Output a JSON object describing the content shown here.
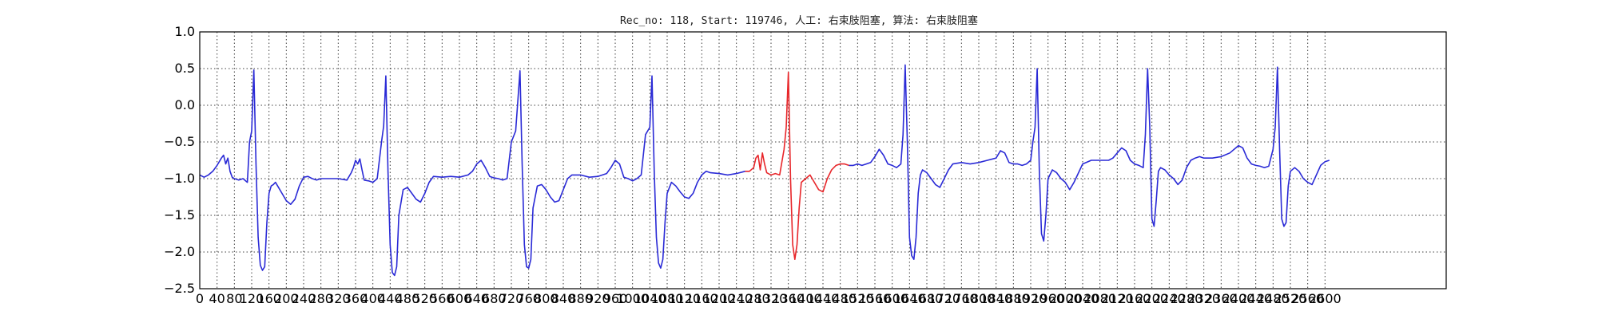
{
  "chart_data": {
    "type": "line",
    "title": "Rec_no: 118, Start: 119746, 人工: 右束肢阻塞, 算法: 右束肢阻塞",
    "xlabel": "",
    "ylabel": "",
    "xlim": [
      0,
      2880
    ],
    "ylim": [
      -2.5,
      1.0
    ],
    "grid": true,
    "yticks": [
      1.0,
      0.5,
      0.0,
      -0.5,
      -1.0,
      -1.5,
      -2.0,
      -2.5
    ],
    "ytick_labels": [
      "1.0",
      "0.5",
      "0.0",
      "−0.5",
      "−1.0",
      "−1.5",
      "−2.0",
      "−2.5"
    ],
    "xticks": [
      0,
      40,
      80,
      120,
      160,
      200,
      240,
      280,
      320,
      360,
      400,
      440,
      480,
      520,
      560,
      600,
      640,
      680,
      720,
      760,
      800,
      840,
      880,
      920,
      960,
      1000,
      1040,
      1080,
      1120,
      1160,
      1200,
      1240,
      1280,
      1320,
      1360,
      1400,
      1440,
      1480,
      1520,
      1560,
      1600,
      1640,
      1680,
      1720,
      1760,
      1800,
      1840,
      1880,
      1920,
      1960,
      2000,
      2040,
      2080,
      2120,
      2160,
      2200,
      2240,
      2280,
      2320,
      2360,
      2400,
      2440,
      2480,
      2520,
      2560,
      2600
    ],
    "highlight_color": "#e8262a",
    "base_color": "#2a2ad6",
    "series": [
      {
        "color": "#2a2ad6",
        "x": [
          0,
          10,
          20,
          30,
          40,
          50,
          55,
          60,
          65,
          70,
          75,
          80,
          90,
          100,
          110,
          115,
          120,
          125,
          130,
          135,
          140,
          145,
          150,
          155,
          160,
          165,
          170,
          175,
          180,
          190,
          200,
          210,
          220,
          230,
          240,
          250,
          260,
          270,
          280,
          300,
          320,
          340,
          350,
          355,
          360,
          365,
          370,
          375,
          380,
          390,
          400,
          410,
          420,
          425,
          430,
          435,
          440,
          445,
          450,
          455,
          460,
          470,
          480,
          490,
          500,
          510,
          520,
          530,
          540,
          560,
          580,
          600,
          620,
          630,
          640,
          650,
          660,
          670,
          680,
          690,
          700,
          710,
          720,
          730,
          740,
          745,
          750,
          755,
          760,
          765,
          770,
          780,
          790,
          800,
          810,
          820,
          830,
          840,
          850,
          860,
          880,
          900,
          920,
          940,
          950,
          960,
          970,
          980,
          990,
          1000,
          1010,
          1020,
          1030,
          1040,
          1045,
          1050,
          1055,
          1060,
          1065,
          1070,
          1075,
          1080,
          1090,
          1100,
          1110,
          1120,
          1130,
          1140,
          1150,
          1160,
          1170,
          1180,
          1200,
          1220,
          1240,
          1260
        ],
        "y": [
          -0.95,
          -0.98,
          -0.95,
          -0.9,
          -0.82,
          -0.72,
          -0.68,
          -0.8,
          -0.72,
          -0.9,
          -0.98,
          -1.0,
          -1.02,
          -1.0,
          -1.05,
          -0.5,
          -0.35,
          0.48,
          -0.8,
          -1.8,
          -2.18,
          -2.25,
          -2.2,
          -1.6,
          -1.2,
          -1.1,
          -1.08,
          -1.05,
          -1.1,
          -1.2,
          -1.3,
          -1.35,
          -1.28,
          -1.1,
          -0.98,
          -0.97,
          -1.0,
          -1.02,
          -1.0,
          -1.0,
          -1.0,
          -1.02,
          -0.92,
          -0.85,
          -0.75,
          -0.8,
          -0.73,
          -0.88,
          -1.02,
          -1.03,
          -1.05,
          -1.0,
          -0.5,
          -0.28,
          0.4,
          -0.9,
          -1.9,
          -2.28,
          -2.32,
          -2.2,
          -1.5,
          -1.15,
          -1.12,
          -1.2,
          -1.28,
          -1.32,
          -1.2,
          -1.05,
          -0.97,
          -0.98,
          -0.97,
          -0.98,
          -0.95,
          -0.9,
          -0.8,
          -0.75,
          -0.85,
          -0.97,
          -0.99,
          -1.0,
          -1.02,
          -1.0,
          -0.5,
          -0.35,
          0.47,
          -0.8,
          -1.9,
          -2.2,
          -2.22,
          -2.1,
          -1.4,
          -1.1,
          -1.08,
          -1.15,
          -1.25,
          -1.32,
          -1.3,
          -1.15,
          -1.0,
          -0.95,
          -0.95,
          -0.98,
          -0.97,
          -0.93,
          -0.85,
          -0.75,
          -0.8,
          -0.98,
          -1.0,
          -1.03,
          -1.0,
          -0.95,
          -0.4,
          -0.3,
          0.4,
          -0.9,
          -1.8,
          -2.15,
          -2.22,
          -2.1,
          -1.6,
          -1.2,
          -1.05,
          -1.1,
          -1.18,
          -1.25,
          -1.27,
          -1.2,
          -1.05,
          -0.95,
          -0.9,
          -0.92,
          -0.93,
          -0.95,
          -0.93,
          -0.9
        ]
      },
      {
        "color": "#e8262a",
        "x": [
          1260,
          1270,
          1280,
          1285,
          1290,
          1295,
          1300,
          1305,
          1310,
          1320,
          1330,
          1340,
          1350,
          1355,
          1360,
          1365,
          1370,
          1375,
          1380,
          1385,
          1390,
          1400,
          1410,
          1420,
          1430,
          1440,
          1450,
          1460,
          1470,
          1480,
          1490,
          1500
        ],
        "y": [
          -0.9,
          -0.9,
          -0.85,
          -0.72,
          -0.68,
          -0.88,
          -0.65,
          -0.8,
          -0.92,
          -0.95,
          -0.93,
          -0.95,
          -0.6,
          -0.3,
          0.45,
          -1.0,
          -1.9,
          -2.1,
          -1.9,
          -1.4,
          -1.05,
          -1.0,
          -0.95,
          -1.05,
          -1.15,
          -1.18,
          -1.0,
          -0.88,
          -0.82,
          -0.8,
          -0.8,
          -0.82
        ]
      },
      {
        "color": "#2a2ad6",
        "x": [
          1500,
          1510,
          1520,
          1530,
          1540,
          1550,
          1560,
          1570,
          1580,
          1590,
          1600,
          1610,
          1620,
          1625,
          1630,
          1635,
          1640,
          1645,
          1650,
          1655,
          1660,
          1665,
          1670,
          1680,
          1690,
          1700,
          1710,
          1720,
          1730,
          1740,
          1760,
          1780,
          1800,
          1820,
          1840,
          1850,
          1860,
          1870,
          1880,
          1890,
          1900,
          1910,
          1920,
          1925,
          1930,
          1935,
          1940,
          1945,
          1950,
          1955,
          1960,
          1970,
          1980,
          1990,
          2000,
          2010,
          2020,
          2040,
          2060,
          2080,
          2100,
          2110,
          2120,
          2130,
          2140,
          2150,
          2160,
          2170,
          2180,
          2185,
          2190,
          2195,
          2200,
          2205,
          2210,
          2215,
          2220,
          2230,
          2240,
          2250,
          2260,
          2270,
          2280,
          2290,
          2300,
          2310,
          2320,
          2340,
          2360,
          2380,
          2400,
          2410,
          2420,
          2430,
          2440,
          2450,
          2460,
          2470,
          2480,
          2485,
          2490,
          2495,
          2500,
          2505,
          2510,
          2515,
          2520,
          2530,
          2540,
          2550,
          2560,
          2570,
          2580,
          2590,
          2600,
          2610
        ],
        "y": [
          -0.82,
          -0.82,
          -0.8,
          -0.82,
          -0.8,
          -0.78,
          -0.7,
          -0.6,
          -0.68,
          -0.8,
          -0.82,
          -0.85,
          -0.8,
          -0.4,
          0.55,
          -0.5,
          -1.8,
          -2.05,
          -2.1,
          -1.8,
          -1.2,
          -0.95,
          -0.88,
          -0.92,
          -1.0,
          -1.08,
          -1.12,
          -1.0,
          -0.88,
          -0.8,
          -0.78,
          -0.8,
          -0.78,
          -0.75,
          -0.72,
          -0.62,
          -0.65,
          -0.78,
          -0.8,
          -0.8,
          -0.82,
          -0.8,
          -0.75,
          -0.5,
          -0.3,
          0.5,
          -0.9,
          -1.75,
          -1.85,
          -1.5,
          -1.0,
          -0.88,
          -0.92,
          -1.0,
          -1.05,
          -1.15,
          -1.05,
          -0.8,
          -0.75,
          -0.75,
          -0.75,
          -0.72,
          -0.65,
          -0.58,
          -0.62,
          -0.75,
          -0.8,
          -0.82,
          -0.85,
          -0.4,
          0.5,
          -0.3,
          -1.55,
          -1.65,
          -1.3,
          -0.9,
          -0.85,
          -0.88,
          -0.95,
          -1.0,
          -1.08,
          -1.02,
          -0.85,
          -0.75,
          -0.72,
          -0.7,
          -0.72,
          -0.72,
          -0.7,
          -0.65,
          -0.55,
          -0.58,
          -0.72,
          -0.8,
          -0.82,
          -0.83,
          -0.85,
          -0.83,
          -0.6,
          -0.3,
          0.52,
          -0.6,
          -1.55,
          -1.65,
          -1.6,
          -1.1,
          -0.9,
          -0.85,
          -0.9,
          -1.0,
          -1.05,
          -1.08,
          -0.95,
          -0.82,
          -0.77,
          -0.75
        ]
      }
    ]
  }
}
